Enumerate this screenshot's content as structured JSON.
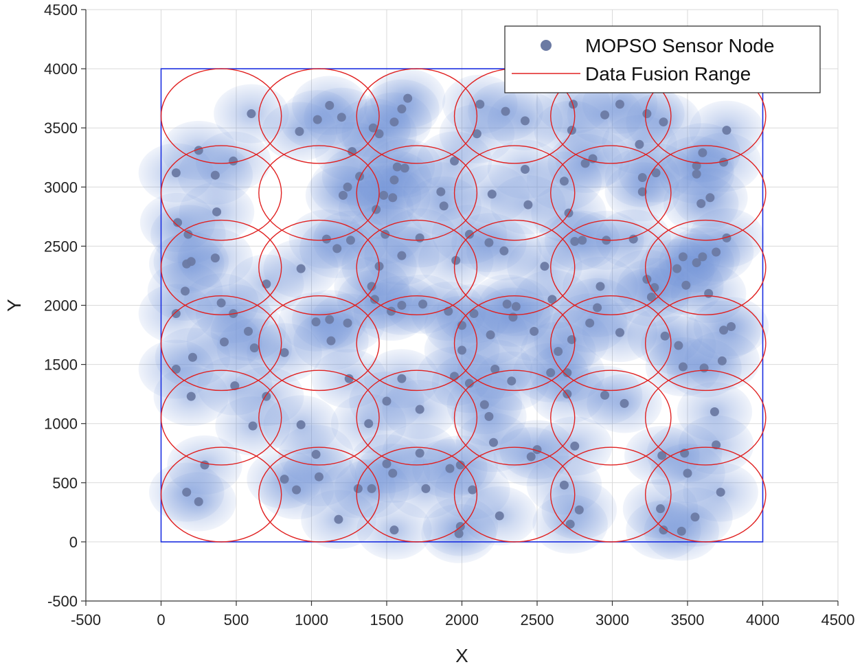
{
  "chart_data": {
    "type": "scatter",
    "title": "",
    "xlabel": "X",
    "ylabel": "Y",
    "xlim": [
      -500,
      4500
    ],
    "ylim": [
      -500,
      4500
    ],
    "xticks": [
      -500,
      0,
      500,
      1000,
      1500,
      2000,
      2500,
      3000,
      3500,
      4000,
      4500
    ],
    "yticks": [
      -500,
      0,
      500,
      1000,
      1500,
      2000,
      2500,
      3000,
      3500,
      4000,
      4500
    ],
    "grid": true,
    "legend_position": "top-right",
    "boundary": {
      "x": [
        0,
        4000
      ],
      "y": [
        0,
        4000
      ]
    },
    "colors": {
      "node": "#6b7aa3",
      "coverage": "#6f91d6",
      "fusion": "#e02020",
      "boundary": "#1a2de0",
      "grid": "#d9d9d9"
    },
    "series": [
      {
        "name": "MOPSO Sensor Node",
        "marker": "circle",
        "points": [
          [
            600,
            3620
          ],
          [
            250,
            3310
          ],
          [
            480,
            3220
          ],
          [
            100,
            3120
          ],
          [
            360,
            3100
          ],
          [
            370,
            2790
          ],
          [
            110,
            2700
          ],
          [
            180,
            2600
          ],
          [
            170,
            2350
          ],
          [
            200,
            2370
          ],
          [
            360,
            2400
          ],
          [
            160,
            2120
          ],
          [
            100,
            1930
          ],
          [
            400,
            2020
          ],
          [
            480,
            1930
          ],
          [
            580,
            1780
          ],
          [
            420,
            1690
          ],
          [
            620,
            1640
          ],
          [
            700,
            2180
          ],
          [
            820,
            1600
          ],
          [
            100,
            1460
          ],
          [
            210,
            1560
          ],
          [
            490,
            1320
          ],
          [
            610,
            980
          ],
          [
            700,
            1230
          ],
          [
            200,
            1230
          ],
          [
            290,
            650
          ],
          [
            170,
            420
          ],
          [
            250,
            340
          ],
          [
            920,
            3470
          ],
          [
            1040,
            3570
          ],
          [
            1120,
            3690
          ],
          [
            1200,
            3590
          ],
          [
            1270,
            3300
          ],
          [
            1320,
            3090
          ],
          [
            1410,
            3500
          ],
          [
            1450,
            3450
          ],
          [
            1210,
            2930
          ],
          [
            1240,
            3000
          ],
          [
            1430,
            2810
          ],
          [
            1100,
            2560
          ],
          [
            1170,
            2480
          ],
          [
            1260,
            2550
          ],
          [
            930,
            2310
          ],
          [
            1400,
            2160
          ],
          [
            1420,
            2050
          ],
          [
            1450,
            2330
          ],
          [
            1490,
            2600
          ],
          [
            1030,
            1860
          ],
          [
            1120,
            1880
          ],
          [
            1240,
            1850
          ],
          [
            1130,
            1700
          ],
          [
            1250,
            1380
          ],
          [
            930,
            990
          ],
          [
            1380,
            1000
          ],
          [
            820,
            530
          ],
          [
            900,
            440
          ],
          [
            1030,
            740
          ],
          [
            1050,
            550
          ],
          [
            1180,
            190
          ],
          [
            1310,
            450
          ],
          [
            1400,
            450
          ],
          [
            1550,
            3550
          ],
          [
            1600,
            3660
          ],
          [
            1640,
            3750
          ],
          [
            1570,
            3170
          ],
          [
            1620,
            3160
          ],
          [
            1550,
            3060
          ],
          [
            1480,
            2930
          ],
          [
            1540,
            2910
          ],
          [
            1600,
            2420
          ],
          [
            1720,
            2570
          ],
          [
            1530,
            1950
          ],
          [
            1600,
            2000
          ],
          [
            1740,
            2010
          ],
          [
            1910,
            1950
          ],
          [
            1600,
            1380
          ],
          [
            1720,
            1120
          ],
          [
            1500,
            1190
          ],
          [
            1540,
            580
          ],
          [
            1500,
            660
          ],
          [
            1720,
            750
          ],
          [
            1760,
            450
          ],
          [
            1550,
            100
          ],
          [
            1980,
            70
          ],
          [
            1990,
            130
          ],
          [
            1860,
            2960
          ],
          [
            1880,
            2840
          ],
          [
            1950,
            3220
          ],
          [
            1960,
            2380
          ],
          [
            2050,
            2600
          ],
          [
            2000,
            1620
          ],
          [
            2000,
            1830
          ],
          [
            2080,
            1930
          ],
          [
            1950,
            1400
          ],
          [
            2050,
            1340
          ],
          [
            2150,
            1160
          ],
          [
            2180,
            1060
          ],
          [
            1990,
            650
          ],
          [
            1920,
            620
          ],
          [
            2070,
            440
          ],
          [
            2120,
            3700
          ],
          [
            2100,
            3450
          ],
          [
            2290,
            3640
          ],
          [
            2420,
            3560
          ],
          [
            2200,
            2940
          ],
          [
            2420,
            3150
          ],
          [
            2440,
            2850
          ],
          [
            2180,
            2530
          ],
          [
            2280,
            2460
          ],
          [
            2300,
            2010
          ],
          [
            2340,
            1900
          ],
          [
            2360,
            1990
          ],
          [
            2480,
            1780
          ],
          [
            2190,
            1750
          ],
          [
            2220,
            1460
          ],
          [
            2330,
            1360
          ],
          [
            2210,
            840
          ],
          [
            2500,
            780
          ],
          [
            2460,
            720
          ],
          [
            2250,
            220
          ],
          [
            2550,
            2330
          ],
          [
            2600,
            2050
          ],
          [
            2640,
            1610
          ],
          [
            2590,
            1430
          ],
          [
            2700,
            1430
          ],
          [
            2730,
            1710
          ],
          [
            2700,
            1250
          ],
          [
            2710,
            2780
          ],
          [
            2680,
            3050
          ],
          [
            2730,
            3480
          ],
          [
            2740,
            3700
          ],
          [
            2820,
            3200
          ],
          [
            2870,
            3240
          ],
          [
            2750,
            2540
          ],
          [
            2800,
            2550
          ],
          [
            2960,
            2550
          ],
          [
            2920,
            2160
          ],
          [
            2900,
            1980
          ],
          [
            2850,
            1850
          ],
          [
            3050,
            1770
          ],
          [
            2950,
            1240
          ],
          [
            3080,
            1170
          ],
          [
            2750,
            810
          ],
          [
            2680,
            480
          ],
          [
            2780,
            270
          ],
          [
            2720,
            150
          ],
          [
            2950,
            3610
          ],
          [
            3050,
            3700
          ],
          [
            3230,
            3620
          ],
          [
            3340,
            3550
          ],
          [
            3180,
            3360
          ],
          [
            3200,
            3080
          ],
          [
            3200,
            2960
          ],
          [
            3290,
            3120
          ],
          [
            3140,
            2560
          ],
          [
            3230,
            2220
          ],
          [
            3260,
            2070
          ],
          [
            3280,
            2150
          ],
          [
            3430,
            2310
          ],
          [
            3470,
            2410
          ],
          [
            3490,
            2170
          ],
          [
            3350,
            1740
          ],
          [
            3440,
            1660
          ],
          [
            3470,
            1480
          ],
          [
            3330,
            730
          ],
          [
            3480,
            750
          ],
          [
            3500,
            580
          ],
          [
            3320,
            280
          ],
          [
            3340,
            100
          ],
          [
            3460,
            90
          ],
          [
            3600,
            3290
          ],
          [
            3560,
            3180
          ],
          [
            3560,
            3110
          ],
          [
            3590,
            2860
          ],
          [
            3650,
            2910
          ],
          [
            3560,
            2360
          ],
          [
            3600,
            2410
          ],
          [
            3690,
            2450
          ],
          [
            3760,
            2570
          ],
          [
            3640,
            2100
          ],
          [
            3610,
            1470
          ],
          [
            3740,
            1790
          ],
          [
            3790,
            1820
          ],
          [
            3730,
            1530
          ],
          [
            3740,
            3210
          ],
          [
            3760,
            3480
          ],
          [
            3680,
            1100
          ],
          [
            3690,
            820
          ],
          [
            3720,
            420
          ],
          [
            3550,
            210
          ]
        ]
      },
      {
        "name": "Data Fusion Range",
        "shape": "ellipse",
        "rx": 400,
        "ry": 400,
        "centers": [
          [
            400,
            3600
          ],
          [
            1050,
            3600
          ],
          [
            1700,
            3600
          ],
          [
            2350,
            3600
          ],
          [
            2990,
            3600
          ],
          [
            3620,
            3600
          ],
          [
            400,
            2950
          ],
          [
            1050,
            2950
          ],
          [
            1700,
            2950
          ],
          [
            2350,
            2950
          ],
          [
            2990,
            2950
          ],
          [
            3620,
            2950
          ],
          [
            400,
            2320
          ],
          [
            1050,
            2320
          ],
          [
            1700,
            2320
          ],
          [
            2350,
            2320
          ],
          [
            2990,
            2320
          ],
          [
            3620,
            2320
          ],
          [
            400,
            1680
          ],
          [
            1050,
            1680
          ],
          [
            1700,
            1680
          ],
          [
            2350,
            1680
          ],
          [
            2990,
            1680
          ],
          [
            3620,
            1680
          ],
          [
            400,
            1050
          ],
          [
            1050,
            1050
          ],
          [
            1700,
            1050
          ],
          [
            2350,
            1050
          ],
          [
            2990,
            1050
          ],
          [
            3620,
            1050
          ],
          [
            400,
            400
          ],
          [
            1050,
            400
          ],
          [
            1700,
            400
          ],
          [
            2350,
            400
          ],
          [
            2990,
            400
          ],
          [
            3620,
            400
          ]
        ]
      }
    ]
  }
}
